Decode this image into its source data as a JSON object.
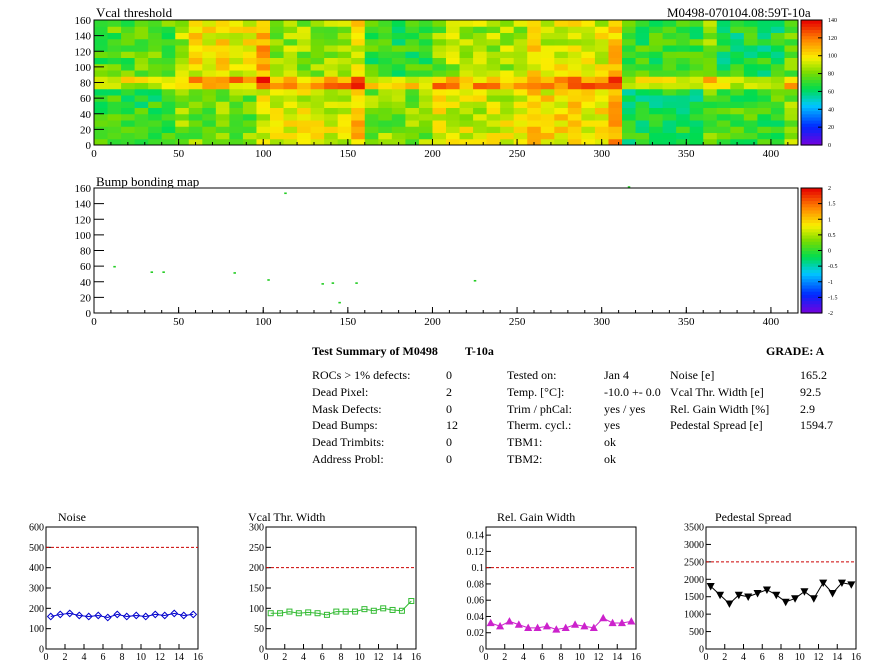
{
  "page_title": "",
  "header": {
    "title": "Vcal threshold",
    "module_id": "M0498-070104.08:59T-10a"
  },
  "chart_data": [
    {
      "type": "heatmap",
      "title": "Vcal threshold",
      "xlim": [
        0,
        416
      ],
      "ylim": [
        0,
        160
      ],
      "x_ticks": [
        "0",
        "50",
        "100",
        "150",
        "200",
        "250",
        "300",
        "350",
        "400"
      ],
      "y_ticks": [
        "0",
        "20",
        "40",
        "60",
        "80",
        "100",
        "120",
        "140",
        "160"
      ],
      "colorbar": {
        "min": 0,
        "max": 140,
        "ticks": [
          "0",
          "20",
          "40",
          "60",
          "80",
          "100",
          "120",
          "140"
        ]
      },
      "roc_grid": {
        "cols": 8,
        "rows": 2
      },
      "roc_mean_values": [
        [
          70,
          80,
          95,
          82,
          92,
          100,
          66,
          72
        ],
        [
          75,
          98,
          85,
          70,
          86,
          94,
          70,
          66
        ]
      ],
      "bright_rows_at": 80
    },
    {
      "type": "scatter",
      "title": "Bump bonding map",
      "xlim": [
        0,
        416
      ],
      "ylim": [
        0,
        160
      ],
      "x_ticks": [
        "0",
        "50",
        "100",
        "150",
        "200",
        "250",
        "300",
        "350",
        "400"
      ],
      "y_ticks": [
        "0",
        "20",
        "40",
        "60",
        "80",
        "100",
        "120",
        "140",
        "160"
      ],
      "colorbar": {
        "min": -2,
        "max": 2,
        "ticks": [
          "-2",
          "-1.5",
          "-1",
          "-0.5",
          "0",
          "0.5",
          "1",
          "1.5",
          "2"
        ]
      },
      "points": [
        [
          12,
          59
        ],
        [
          34,
          52
        ],
        [
          41,
          52
        ],
        [
          83,
          51
        ],
        [
          103,
          42
        ],
        [
          113,
          153
        ],
        [
          135,
          37
        ],
        [
          141,
          38
        ],
        [
          145,
          13
        ],
        [
          155,
          38
        ],
        [
          225,
          41
        ],
        [
          316,
          161
        ]
      ]
    },
    {
      "type": "line",
      "title": "Noise",
      "xlim": [
        0,
        16
      ],
      "ylim": [
        0,
        600
      ],
      "x_ticks": [
        "0",
        "2",
        "4",
        "6",
        "8",
        "10",
        "12",
        "14",
        "16"
      ],
      "y_ticks": [
        "0",
        "100",
        "200",
        "300",
        "400",
        "500",
        "600"
      ],
      "threshold": 500,
      "x": [
        0.5,
        1.5,
        2.5,
        3.5,
        4.5,
        5.5,
        6.5,
        7.5,
        8.5,
        9.5,
        10.5,
        11.5,
        12.5,
        13.5,
        14.5,
        15.5
      ],
      "values": [
        160,
        170,
        175,
        165,
        160,
        165,
        155,
        170,
        160,
        165,
        160,
        170,
        165,
        175,
        165,
        170
      ],
      "color": "#0000cc",
      "marker": "diamond"
    },
    {
      "type": "line",
      "title": "Vcal Thr. Width",
      "xlim": [
        0,
        16
      ],
      "ylim": [
        0,
        300
      ],
      "x_ticks": [
        "0",
        "2",
        "4",
        "6",
        "8",
        "10",
        "12",
        "14",
        "16"
      ],
      "y_ticks": [
        "0",
        "50",
        "100",
        "150",
        "200",
        "250",
        "300"
      ],
      "threshold": 200,
      "x": [
        0.5,
        1.5,
        2.5,
        3.5,
        4.5,
        5.5,
        6.5,
        7.5,
        8.5,
        9.5,
        10.5,
        11.5,
        12.5,
        13.5,
        14.5,
        15.5
      ],
      "values": [
        88,
        88,
        92,
        88,
        90,
        88,
        84,
        92,
        92,
        92,
        98,
        94,
        100,
        96,
        94,
        118
      ],
      "color": "#33bb33",
      "marker": "square"
    },
    {
      "type": "line",
      "title": "Rel. Gain Width",
      "xlim": [
        0,
        16
      ],
      "ylim": [
        0,
        0.15
      ],
      "x_ticks": [
        "0",
        "2",
        "4",
        "6",
        "8",
        "10",
        "12",
        "14",
        "16"
      ],
      "y_ticks": [
        "0",
        "0.02",
        "0.04",
        "0.06",
        "0.08",
        "0.1",
        "0.12",
        "0.14"
      ],
      "threshold": 0.1,
      "x": [
        0.5,
        1.5,
        2.5,
        3.5,
        4.5,
        5.5,
        6.5,
        7.5,
        8.5,
        9.5,
        10.5,
        11.5,
        12.5,
        13.5,
        14.5,
        15.5
      ],
      "values": [
        0.032,
        0.028,
        0.034,
        0.03,
        0.026,
        0.026,
        0.028,
        0.024,
        0.026,
        0.03,
        0.028,
        0.026,
        0.038,
        0.032,
        0.032,
        0.034
      ],
      "color": "#cc22cc",
      "marker": "triangle-up"
    },
    {
      "type": "line",
      "title": "Pedestal Spread",
      "xlim": [
        0,
        16
      ],
      "ylim": [
        0,
        3500
      ],
      "x_ticks": [
        "0",
        "2",
        "4",
        "6",
        "8",
        "10",
        "12",
        "14",
        "16"
      ],
      "y_ticks": [
        "0",
        "500",
        "1000",
        "1500",
        "2000",
        "2500",
        "3000",
        "3500"
      ],
      "threshold": 2500,
      "x": [
        0.5,
        1.5,
        2.5,
        3.5,
        4.5,
        5.5,
        6.5,
        7.5,
        8.5,
        9.5,
        10.5,
        11.5,
        12.5,
        13.5,
        14.5,
        15.5
      ],
      "values": [
        1800,
        1550,
        1300,
        1550,
        1500,
        1600,
        1700,
        1550,
        1350,
        1450,
        1650,
        1450,
        1900,
        1600,
        1900,
        1850
      ],
      "color": "#000000",
      "marker": "triangle-down"
    }
  ],
  "summary": {
    "title": "Test Summary of M0498",
    "temp_label": "T-10a",
    "grade": "GRADE:  A",
    "col1": [
      {
        "label": "ROCs > 1% defects:",
        "value": "0"
      },
      {
        "label": "Dead Pixel:",
        "value": "2"
      },
      {
        "label": "Mask Defects:",
        "value": "0"
      },
      {
        "label": "Dead Bumps:",
        "value": "12"
      },
      {
        "label": "Dead Trimbits:",
        "value": "0"
      },
      {
        "label": "Address Probl:",
        "value": "0"
      }
    ],
    "col2": [
      {
        "label": "Tested on:",
        "value": "Jan 4"
      },
      {
        "label": "Temp. [°C]:",
        "value": "-10.0 +- 0.0"
      },
      {
        "label": "Trim / phCal:",
        "value": "yes / yes"
      },
      {
        "label": "Therm. cycl.:",
        "value": "yes"
      },
      {
        "label": "TBM1:",
        "value": "ok"
      },
      {
        "label": "TBM2:",
        "value": "ok"
      }
    ],
    "col3": [
      {
        "label": "Noise [e]",
        "value": "165.2"
      },
      {
        "label": "Vcal Thr. Width [e]",
        "value": "92.5"
      },
      {
        "label": "Rel. Gain Width [%]",
        "value": "2.9"
      },
      {
        "label": "Pedestal Spread [e]",
        "value": "1594.7"
      }
    ]
  }
}
